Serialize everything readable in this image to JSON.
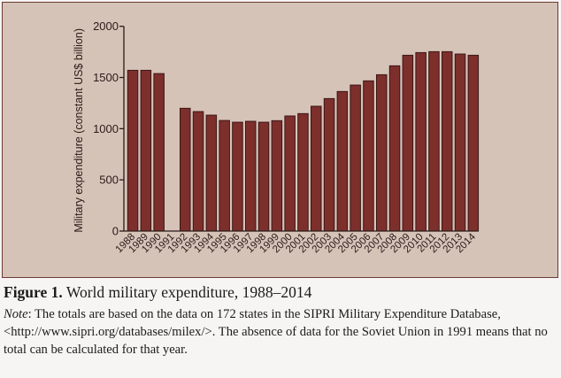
{
  "chart_data": {
    "type": "bar",
    "title": "",
    "xlabel": "",
    "ylabel": "Military expenditure (constant US$ billion)",
    "ylim": [
      0,
      2000
    ],
    "yticks": [
      0,
      500,
      1000,
      1500,
      2000
    ],
    "grid": false,
    "legend": null,
    "categories": [
      "1988",
      "1989",
      "1990",
      "1991",
      "1992",
      "1993",
      "1994",
      "1995",
      "1996",
      "1997",
      "1998",
      "1999",
      "2000",
      "2001",
      "2002",
      "2003",
      "2004",
      "2005",
      "2006",
      "2007",
      "2008",
      "2009",
      "2010",
      "2011",
      "2012",
      "2013",
      "2014"
    ],
    "values": [
      1570,
      1570,
      1538,
      null,
      1199,
      1167,
      1132,
      1080,
      1063,
      1072,
      1063,
      1078,
      1124,
      1147,
      1219,
      1294,
      1363,
      1426,
      1467,
      1527,
      1614,
      1717,
      1743,
      1752,
      1752,
      1729,
      1717
    ],
    "colors": {
      "bar": "#7d2f2c",
      "bar_outline": "#3b1614",
      "background": "#d6c3b8",
      "axis": "#2a1a17"
    }
  },
  "caption": {
    "figure_label": "Figure 1.",
    "figure_title": " World military expenditure, 1988–2014",
    "note_label": "Note",
    "note_text": ": The totals are based on the data on 172 states in the SIPRI Military Expenditure Database, <http://www.sipri.org/databases/milex/>. The absence of data for the Soviet Union in 1991 means that no total can be calculated for that year."
  }
}
